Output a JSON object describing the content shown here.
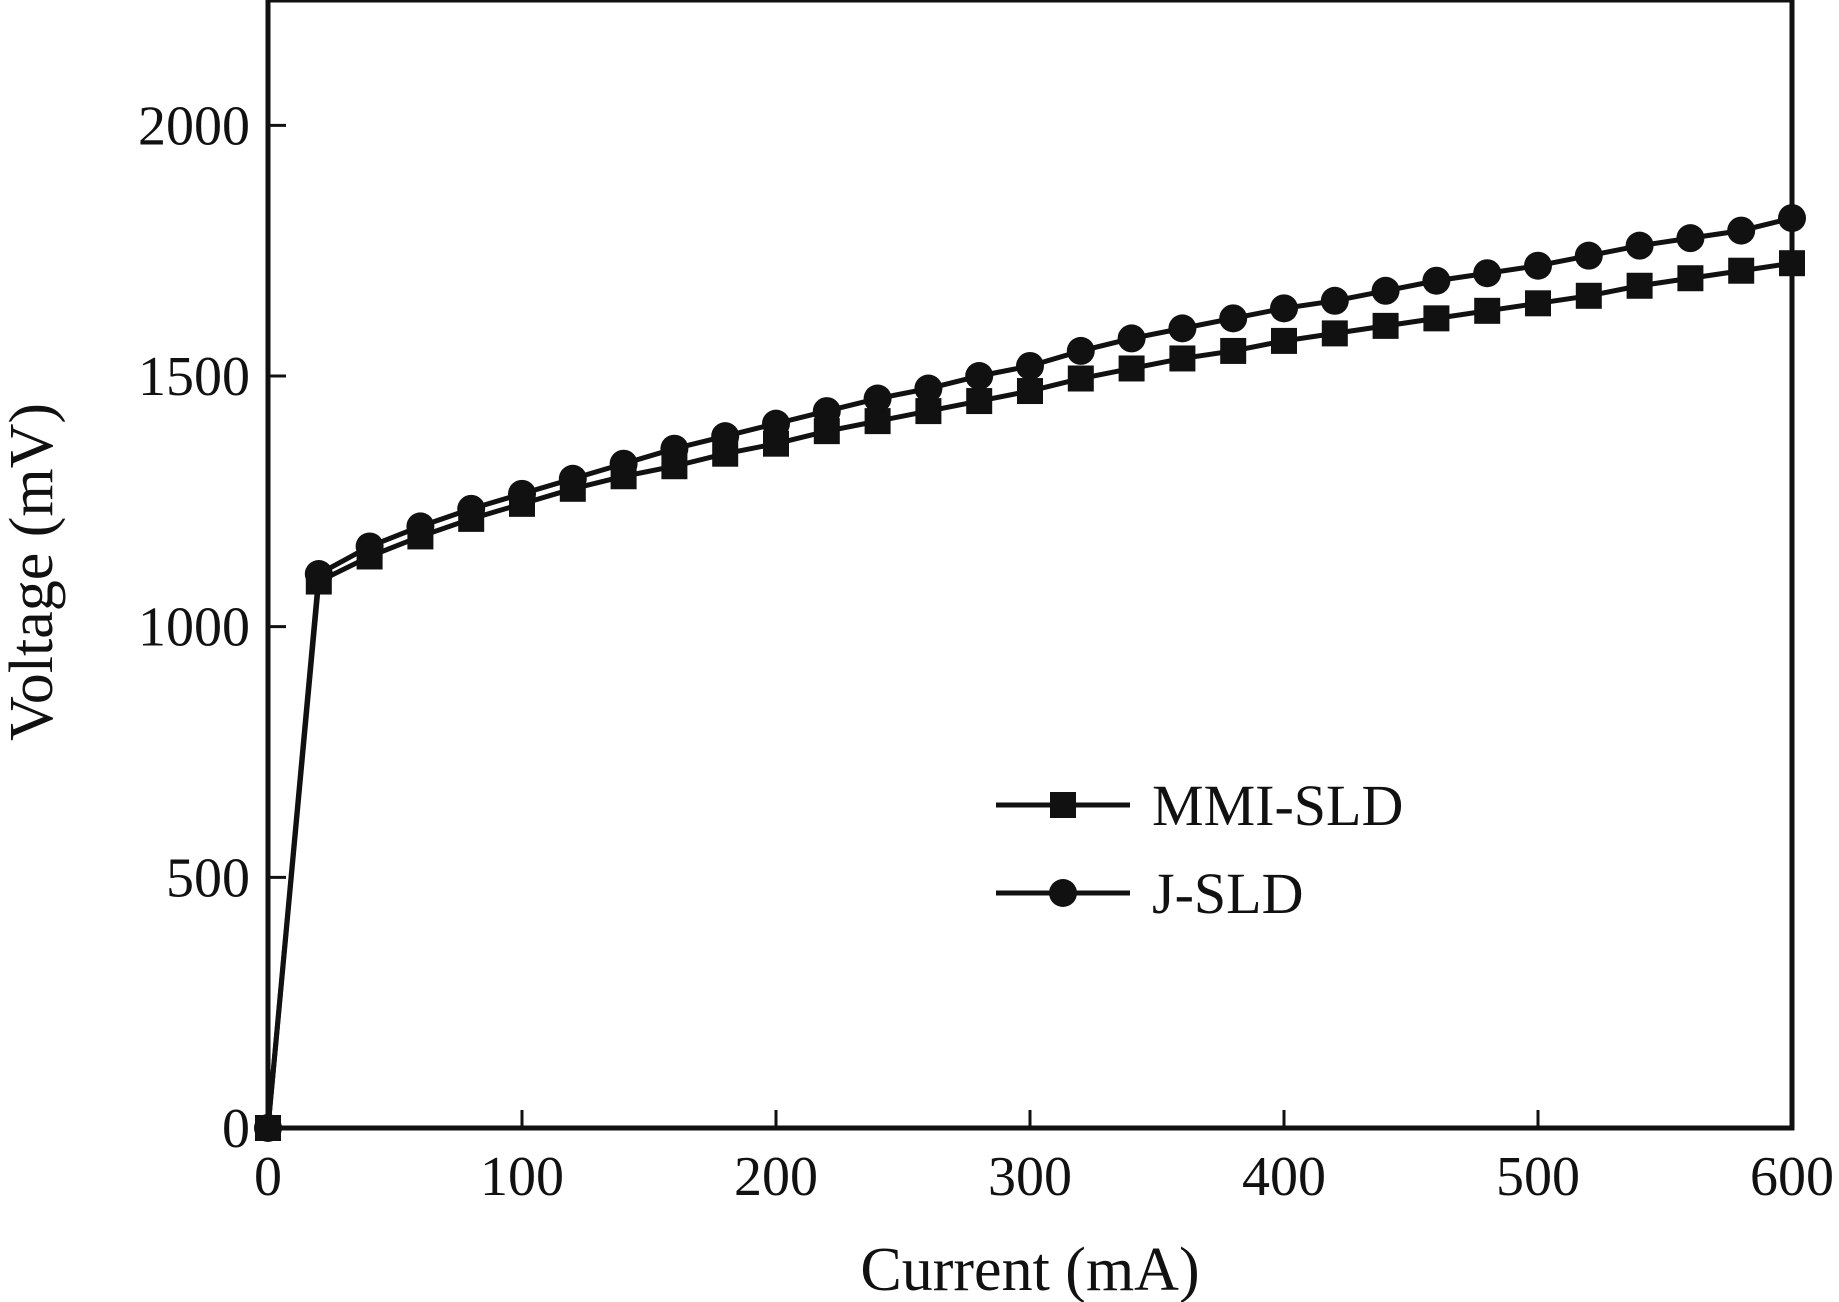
{
  "chart_data": {
    "type": "line",
    "title": "",
    "xlabel": "Current (mA)",
    "ylabel": "Voltage (mV)",
    "xlim": [
      0,
      600
    ],
    "ylim": [
      0,
      2250
    ],
    "xticks": [
      0,
      100,
      200,
      300,
      400,
      500,
      600
    ],
    "yticks": [
      0,
      500,
      1000,
      1500,
      2000
    ],
    "grid": false,
    "legend_position": "center-right",
    "colors": {
      "line": "#111111",
      "frame": "#111111"
    },
    "x": [
      0,
      20,
      40,
      60,
      80,
      100,
      120,
      140,
      160,
      180,
      200,
      220,
      240,
      260,
      280,
      300,
      320,
      340,
      360,
      380,
      400,
      420,
      440,
      460,
      480,
      500,
      520,
      540,
      560,
      580,
      600
    ],
    "series": [
      {
        "name": "MMI-SLD",
        "marker": "square",
        "values": [
          0,
          1090,
          1140,
          1180,
          1215,
          1245,
          1275,
          1300,
          1320,
          1345,
          1365,
          1390,
          1410,
          1430,
          1450,
          1470,
          1495,
          1515,
          1535,
          1550,
          1570,
          1585,
          1600,
          1615,
          1630,
          1645,
          1660,
          1680,
          1695,
          1710,
          1725
        ]
      },
      {
        "name": "J-SLD",
        "marker": "circle",
        "values": [
          0,
          1105,
          1160,
          1200,
          1235,
          1265,
          1295,
          1325,
          1355,
          1380,
          1405,
          1430,
          1455,
          1475,
          1500,
          1520,
          1550,
          1575,
          1595,
          1615,
          1635,
          1650,
          1670,
          1690,
          1705,
          1720,
          1740,
          1760,
          1775,
          1790,
          1815
        ]
      }
    ]
  }
}
